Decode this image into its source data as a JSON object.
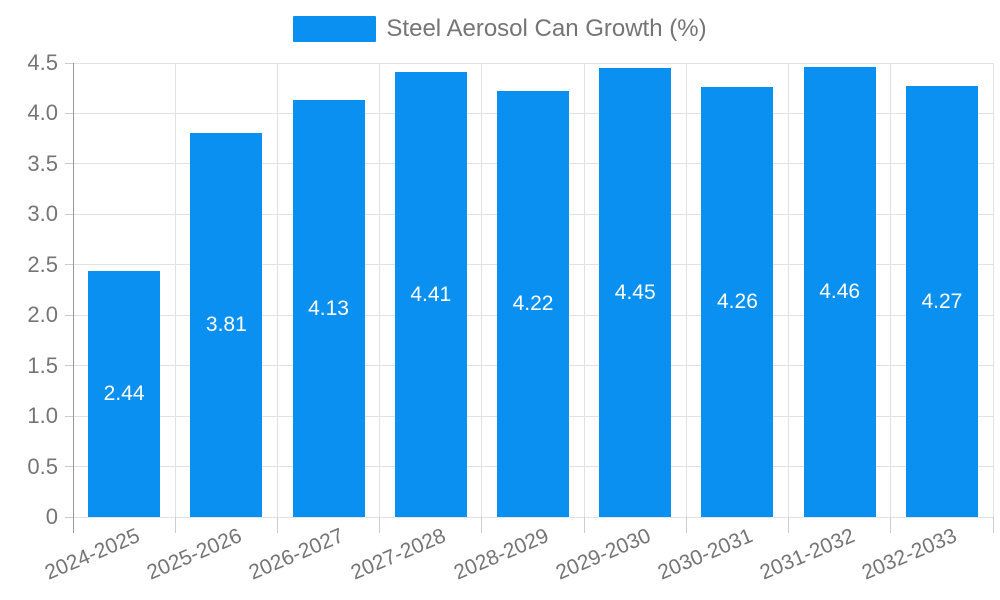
{
  "legend": {
    "label": "Steel Aerosol Can Growth (%)"
  },
  "colors": {
    "bar": "#0A90F0",
    "axis_line": "#999999",
    "grid": "#E2E2E2",
    "tick": "#CCCCCC",
    "axis_text": "#757575",
    "value_text": "#FFFFFF",
    "background": "#FFFFFF"
  },
  "chart_data": {
    "type": "bar",
    "title": "Steel Aerosol Can Growth (%)",
    "categories": [
      "2024-2025",
      "2025-2026",
      "2026-2027",
      "2027-2028",
      "2028-2029",
      "2029-2030",
      "2030-2031",
      "2031-2032",
      "2032-2033"
    ],
    "values": [
      2.44,
      3.81,
      4.13,
      4.41,
      4.22,
      4.45,
      4.26,
      4.46,
      4.27
    ],
    "value_labels": [
      "2.44",
      "3.81",
      "4.13",
      "4.41",
      "4.22",
      "4.45",
      "4.26",
      "4.46",
      "4.27"
    ],
    "xlabel": "",
    "ylabel": "",
    "ylim": [
      0,
      4.5
    ],
    "ytick_step": 0.5,
    "ytick_labels": [
      "0",
      "0.5",
      "1.0",
      "1.5",
      "2.0",
      "2.5",
      "3.0",
      "3.5",
      "4.0",
      "4.5"
    ],
    "grid": true,
    "legend_position": "top-center",
    "bar_label_position": "center-inside"
  }
}
